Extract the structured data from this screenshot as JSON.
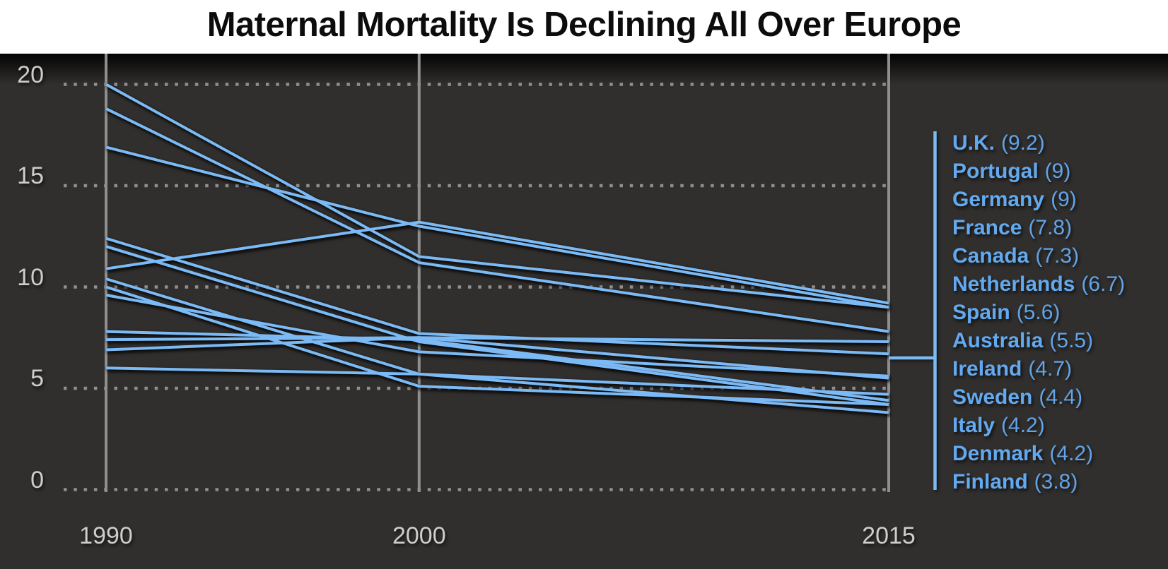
{
  "title": "Maternal Mortality Is Declining All Over Europe",
  "colors": {
    "header_bg": "#ffffff",
    "title_text": "#0c0c0c",
    "chart_bg": "#312f2d",
    "line": "#7cbaf5",
    "grid_dots": "#8f8f8f",
    "axis_line": "#8f8f8f",
    "tick_label": "#cdcdcd",
    "legend_text": "#63a9f0"
  },
  "y_axis": {
    "ticks": [
      {
        "value": 20,
        "label": "20"
      },
      {
        "value": 15,
        "label": "15"
      },
      {
        "value": 10,
        "label": "10"
      },
      {
        "value": 5,
        "label": "5"
      },
      {
        "value": 0,
        "label": "0"
      }
    ]
  },
  "x_axis": {
    "ticks": [
      {
        "year": 1990,
        "label": "1990"
      },
      {
        "year": 2000,
        "label": "2000"
      },
      {
        "year": 2015,
        "label": "2015"
      }
    ]
  },
  "chart_data": {
    "type": "line",
    "title": "Maternal Mortality Is Declining All Over Europe",
    "x": [
      1990,
      2000,
      2015
    ],
    "ylim": [
      0,
      20
    ],
    "grid": "horizontal dotted gridlines at 0,5,10,15,20",
    "legend_position": "right",
    "series": [
      {
        "name": "U.K.",
        "values": [
          10.9,
          13.2,
          9.2
        ],
        "final_label": "(9.2)"
      },
      {
        "name": "Portugal",
        "values": [
          16.9,
          13.0,
          9.0
        ],
        "final_label": "(9)"
      },
      {
        "name": "Germany",
        "values": [
          20.0,
          11.5,
          9.0
        ],
        "final_label": "(9)"
      },
      {
        "name": "France",
        "values": [
          18.8,
          11.2,
          7.8
        ],
        "final_label": "(7.8)"
      },
      {
        "name": "Canada",
        "values": [
          7.4,
          7.5,
          7.3
        ],
        "final_label": "(7.3)"
      },
      {
        "name": "Netherlands",
        "values": [
          12.4,
          7.7,
          6.7
        ],
        "final_label": "(6.7)"
      },
      {
        "name": "Spain",
        "values": [
          9.6,
          6.8,
          5.6
        ],
        "final_label": "(5.6)"
      },
      {
        "name": "Australia",
        "values": [
          6.9,
          7.5,
          5.5
        ],
        "final_label": "(5.5)"
      },
      {
        "name": "Ireland",
        "values": [
          10.4,
          5.7,
          4.7
        ],
        "final_label": "(4.7)"
      },
      {
        "name": "Sweden",
        "values": [
          7.8,
          7.4,
          4.4
        ],
        "final_label": "(4.4)"
      },
      {
        "name": "Italy",
        "values": [
          10.0,
          5.1,
          4.2
        ],
        "final_label": "(4.2)"
      },
      {
        "name": "Denmark",
        "values": [
          12.0,
          7.3,
          4.2
        ],
        "final_label": "(4.2)"
      },
      {
        "name": "Finland",
        "values": [
          6.0,
          5.7,
          3.8
        ],
        "final_label": "(3.8)"
      }
    ]
  }
}
